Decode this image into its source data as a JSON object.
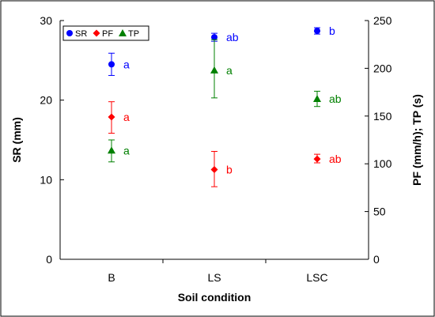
{
  "chart_data": {
    "type": "scatter",
    "title": "",
    "xlabel": "Soil condition",
    "ylabel_left": "SR (mm)",
    "ylabel_right": "PF (mm/h); TP (s)",
    "categories": [
      "B",
      "LS",
      "LSC"
    ],
    "ylim_left": [
      0,
      30
    ],
    "yticks_left": [
      "0",
      "10",
      "20",
      "30"
    ],
    "ylim_right": [
      0,
      250
    ],
    "yticks_right": [
      "0",
      "50",
      "100",
      "150",
      "200",
      "250"
    ],
    "grid": false,
    "legend_position": "top-left",
    "series": [
      {
        "name": "SR",
        "axis": "left",
        "color": "#0000ff",
        "marker": "circle",
        "values": [
          24.5,
          27.9,
          28.7
        ],
        "error_low": [
          23.1,
          27.4,
          28.3
        ],
        "error_high": [
          25.9,
          28.4,
          29.1
        ],
        "labels": [
          "a",
          "ab",
          "b"
        ]
      },
      {
        "name": "PF",
        "axis": "right",
        "color": "#ff0000",
        "marker": "diamond",
        "values": [
          149,
          94,
          105
        ],
        "error_low": [
          132,
          76,
          101
        ],
        "error_high": [
          165,
          113,
          110
        ],
        "labels": [
          "a",
          "b",
          "ab"
        ]
      },
      {
        "name": "TP",
        "axis": "right",
        "color": "#008000",
        "marker": "triangle",
        "values": [
          114,
          198,
          168
        ],
        "error_low": [
          102,
          169,
          160
        ],
        "error_high": [
          125,
          230,
          176
        ],
        "labels": [
          "a",
          "a",
          "ab"
        ]
      }
    ]
  }
}
